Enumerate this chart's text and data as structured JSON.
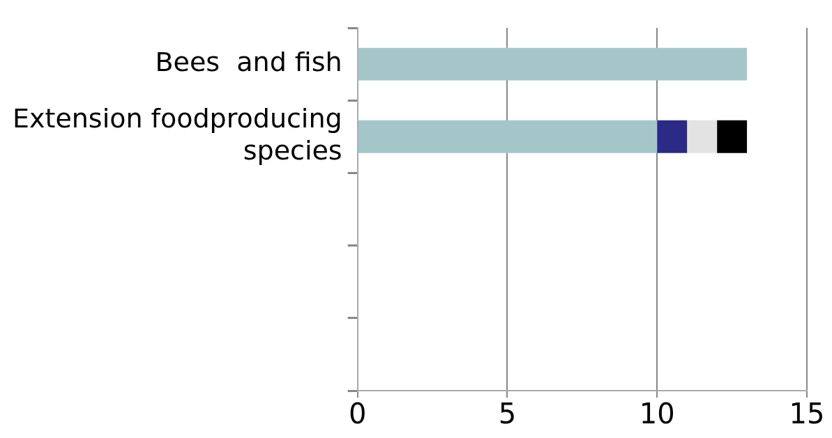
{
  "chart_data": {
    "type": "bar",
    "orientation": "horizontal",
    "stacked": true,
    "categories": [
      "Bees  and fish",
      "Extension foodproducing species",
      null,
      null,
      null
    ],
    "series": [
      {
        "color": "#a5c6c8",
        "values": [
          13,
          10,
          null,
          null,
          null
        ]
      },
      {
        "color": "#2b2a87",
        "values": [
          null,
          1,
          null,
          null,
          null
        ]
      },
      {
        "color": "#e3e3e3",
        "values": [
          null,
          1,
          null,
          null,
          null
        ]
      },
      {
        "color": "#000000",
        "values": [
          null,
          1,
          null,
          null,
          null
        ]
      }
    ],
    "xlim": [
      0,
      15
    ],
    "xticks": [
      0,
      5,
      10,
      15
    ],
    "grid": "x",
    "legend": false
  }
}
